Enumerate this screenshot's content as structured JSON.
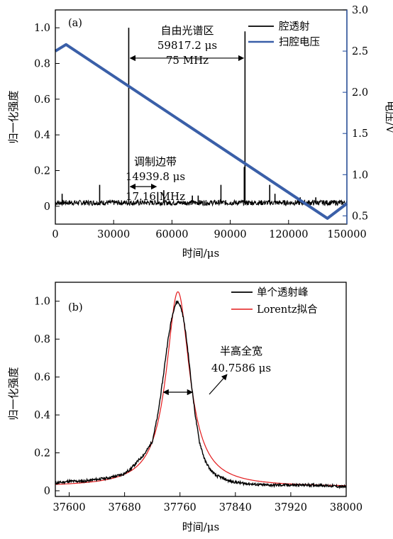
{
  "chart_data": [
    {
      "type": "line",
      "panel_label": "(a)",
      "xlabel": "时间/μs",
      "ylabel": "归一化强度",
      "y2label": "电压/V",
      "xlim": [
        0,
        150000
      ],
      "ylim": [
        -0.1,
        1.1
      ],
      "y2lim": [
        0.4,
        3.0
      ],
      "xticks": [
        "0",
        "30000",
        "60000",
        "90000",
        "120000",
        "150000"
      ],
      "yticks": [
        "0",
        "0.2",
        "0.4",
        "0.6",
        "0.8",
        "1.0"
      ],
      "y2ticks": [
        "0.5",
        "1.0",
        "1.5",
        "2.0",
        "2.5",
        "3.0"
      ],
      "legend_position": "top-right",
      "series": [
        {
          "name": "腔透射",
          "axis": "left",
          "color": "#000000",
          "baseline": 0.02,
          "peaks": [
            {
              "x": 37760,
              "y": 1.0
            },
            {
              "x": 97577,
              "y": 0.98
            },
            {
              "x": 52700,
              "y": 0.08
            },
            {
              "x": 22800,
              "y": 0.12
            },
            {
              "x": 55800,
              "y": 0.09
            },
            {
              "x": 85200,
              "y": 0.12
            },
            {
              "x": 97200,
              "y": 0.22
            },
            {
              "x": 110300,
              "y": 0.12
            },
            {
              "x": 3500,
              "y": 0.07
            },
            {
              "x": 70500,
              "y": 0.06
            },
            {
              "x": 73500,
              "y": 0.06
            },
            {
              "x": 113000,
              "y": 0.07
            },
            {
              "x": 126000,
              "y": 0.05
            },
            {
              "x": 134000,
              "y": 0.05
            }
          ]
        },
        {
          "name": "扫腔电压",
          "axis": "right",
          "color": "#3a5fa8",
          "x": [
            0,
            5500,
            140000,
            150000
          ],
          "y": [
            2.5,
            2.58,
            0.47,
            0.65
          ]
        }
      ],
      "annotations": {
        "fsr": {
          "lines": [
            "自由光谱区",
            "59817.2 μs",
            "75 MHz"
          ],
          "x_start": 37760,
          "x_end": 97577,
          "y": 0.83
        },
        "sideband": {
          "lines": [
            "调制边带",
            "14939.8 μs",
            "17.16 MHz"
          ],
          "x_start": 37760,
          "x_end": 52700,
          "y": 0.11
        }
      }
    },
    {
      "type": "line",
      "panel_label": "(b)",
      "xlabel": "时间/μs",
      "ylabel": "归一化强度",
      "xlim": [
        37580,
        38000
      ],
      "ylim": [
        -0.03,
        1.1
      ],
      "xticks": [
        "37600",
        "37680",
        "37760",
        "37840",
        "37920",
        "38000"
      ],
      "yticks": [
        "0",
        "0.2",
        "0.4",
        "0.6",
        "0.8",
        "1.0"
      ],
      "legend_position": "top-right",
      "series": [
        {
          "name": "单个透射峰",
          "color": "#000000",
          "x": [
            37580,
            37600,
            37620,
            37640,
            37660,
            37680,
            37690,
            37700,
            37710,
            37720,
            37728,
            37735,
            37742,
            37748,
            37752,
            37756,
            37760,
            37764,
            37768,
            37772,
            37776,
            37782,
            37788,
            37796,
            37804,
            37812,
            37820,
            37832,
            37850,
            37880,
            37920,
            37960,
            38000
          ],
          "y": [
            0.04,
            0.05,
            0.05,
            0.06,
            0.07,
            0.09,
            0.12,
            0.16,
            0.2,
            0.26,
            0.4,
            0.58,
            0.78,
            0.91,
            0.97,
            1.0,
            0.98,
            0.93,
            0.84,
            0.72,
            0.58,
            0.4,
            0.26,
            0.16,
            0.11,
            0.08,
            0.07,
            0.05,
            0.04,
            0.03,
            0.03,
            0.03,
            0.02
          ]
        },
        {
          "name": "Lorentz拟合",
          "color": "#e31a1c",
          "x0": 37757,
          "fwhm": 40.7586,
          "amplitude": 1.03,
          "offset": 0.02
        }
      ],
      "annotations": {
        "fwhm": {
          "lines": [
            "半高全宽",
            "40.7586 μs"
          ],
          "x_start": 37736,
          "x_end": 37778,
          "y": 0.52
        }
      }
    }
  ]
}
